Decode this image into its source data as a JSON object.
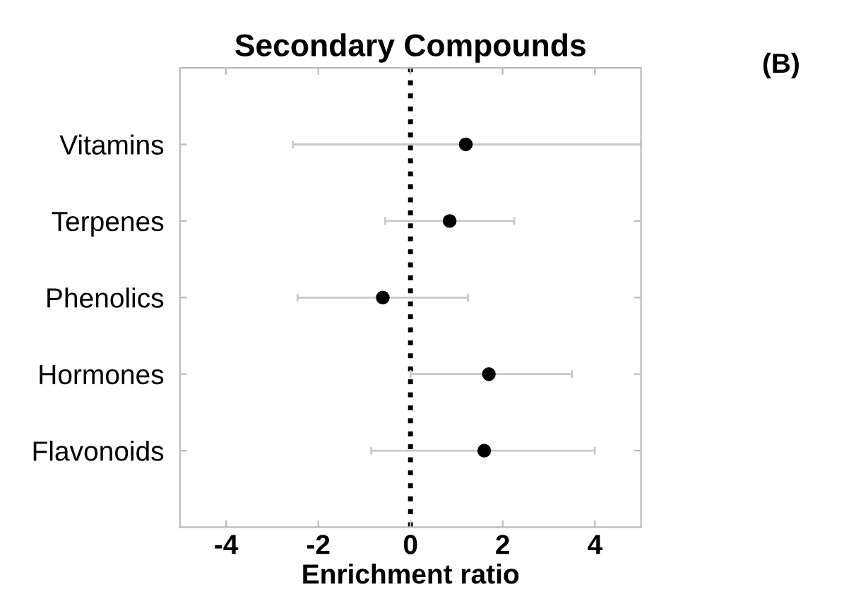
{
  "chart_data": {
    "type": "scatter",
    "title": "Secondary Compounds",
    "xlabel": "Enrichment ratio",
    "orientation": "horizontal",
    "categories": [
      "Vitamins",
      "Terpenes",
      "Phenolics",
      "Hormones",
      "Flavonoids"
    ],
    "series": [
      {
        "color": "#000000",
        "values": [
          1.2,
          0.85,
          -0.6,
          1.7,
          1.6
        ],
        "errors": [
          [
            -2.55,
            5.0
          ],
          [
            -0.55,
            2.25
          ],
          [
            -2.45,
            1.25
          ],
          [
            0,
            3.5
          ],
          [
            -0.85,
            4.0
          ]
        ]
      }
    ],
    "xlim": [
      -5,
      5
    ],
    "xticks": [
      -4,
      -2,
      0,
      2,
      4
    ],
    "grid": false,
    "legend": false,
    "marker": "circle",
    "ref_lines": [
      {
        "axis": "x",
        "value": 0,
        "color": "#000000",
        "line_style": "dotted"
      }
    ],
    "annotations": [
      "(B)"
    ]
  }
}
